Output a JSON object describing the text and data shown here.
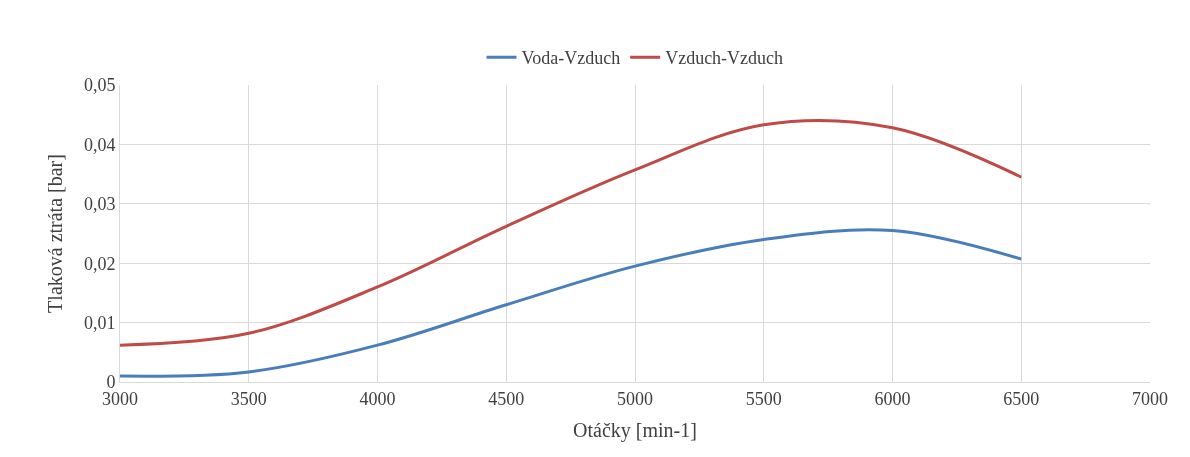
{
  "chart_data": {
    "type": "line",
    "xlabel": "Otáčky [min-1]",
    "ylabel": "Tlaková ztráta [bar]",
    "x": [
      3000,
      3500,
      4000,
      4500,
      5000,
      5500,
      6000,
      6500
    ],
    "series": [
      {
        "name": "Voda-Vzduch",
        "color": "#4a7ebb",
        "values": [
          0.001,
          0.0017,
          0.0062,
          0.013,
          0.0195,
          0.024,
          0.0255,
          0.0207
        ]
      },
      {
        "name": "Vzduch-Vzduch",
        "color": "#be4b48",
        "values": [
          0.0062,
          0.0082,
          0.016,
          0.0262,
          0.0357,
          0.0433,
          0.0428,
          0.0345
        ]
      }
    ],
    "xlim": [
      3000,
      7000
    ],
    "xticks": [
      3000,
      3500,
      4000,
      4500,
      5000,
      5500,
      6000,
      6500,
      7000
    ],
    "ylim": [
      0,
      0.05
    ],
    "yticks": [
      {
        "value": 0,
        "label": "0"
      },
      {
        "value": 0.01,
        "label": "0,01"
      },
      {
        "value": 0.02,
        "label": "0,02"
      },
      {
        "value": 0.03,
        "label": "0,03"
      },
      {
        "value": 0.04,
        "label": "0,04"
      },
      {
        "value": 0.05,
        "label": "0,05"
      }
    ],
    "grid": true,
    "legend": "top",
    "marker": "none",
    "line_style": "solid"
  }
}
